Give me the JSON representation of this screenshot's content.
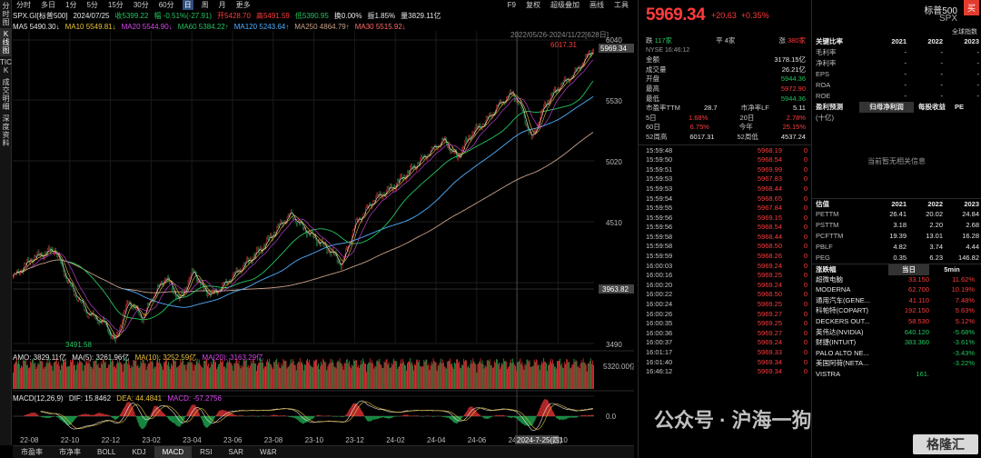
{
  "sidebar": [
    "分时图",
    "K线图",
    "TICK",
    "成交明细",
    "深度资料"
  ],
  "topbar": {
    "items": [
      "分时",
      "多日",
      "1分",
      "5分",
      "15分",
      "30分",
      "60分",
      "日",
      "周",
      "月",
      "更多"
    ],
    "active_index": 7,
    "right": [
      "F9",
      "复权",
      "超级叠加",
      "画线",
      "工具"
    ]
  },
  "info1": {
    "symbol": "SPX.GI[标普500]",
    "date": "2024/07/25",
    "open": "收5399.22",
    "chg": "幅 -0.51%(-27.91)",
    "high": "开5428.70",
    "high2": "高5491.59",
    "low": "低5390.95",
    "turnover": "换0.00%",
    "amp": "振1.85%",
    "vol": "量3829.11亿"
  },
  "info2": {
    "ma5": "MA5 5490.30↓",
    "ma10": "MA10 5549.81↓",
    "ma20": "MA20 5544.90↓",
    "ma60": "MA60 5384.22↑",
    "ma120": "MA120 5243.64↑",
    "ma250": "MA250 4864.79↑",
    "ma30": "MA30 5515.92↓"
  },
  "chart": {
    "range_label": "2022/05/26-2024/11/22[628日]",
    "high_label": "6017.31",
    "low_label": "3491.58",
    "current_label": "5969.34",
    "mid_label": "3963.82",
    "y_ticks": [
      "6040",
      "5530",
      "5020",
      "4510",
      "4000",
      "3490"
    ],
    "x_ticks": [
      "22-08",
      "22-10",
      "22-12",
      "23-02",
      "23-04",
      "23-06",
      "23-08",
      "23-10",
      "23-12",
      "24-02",
      "24-04",
      "24-06",
      "24-08",
      "24-10"
    ],
    "cursor_label": "2024-7-25(四)",
    "vol_info": [
      "AMO: 3829.11亿",
      "MA(5): 3261.96亿",
      "MA(10): 3252.59亿",
      "MA(20): 3163.29亿"
    ],
    "vol_top": "5320.00亿",
    "macd_info": [
      "MACD(12,26,9)",
      "DIF: 15.8462",
      "DEA: 44.4841",
      "MACD: -57.2756"
    ],
    "macd_zero": "0.0"
  },
  "bottom_tabs": [
    "市盈率",
    "市净率",
    "BOLL",
    "KDJ",
    "MACD",
    "RSI",
    "SAR",
    "W&R"
  ],
  "bottom_active": 4,
  "quote": {
    "price": "5969.34",
    "change": "+20.63",
    "pct": "+0.35%",
    "exchange_row": {
      "label": "跌",
      "dn": "117家",
      "flat_label": "平",
      "flat": "4家",
      "up_label": "涨",
      "up": "380家"
    },
    "rows": [
      {
        "k": "金额",
        "v": "3178.15亿",
        "c": "wh"
      },
      {
        "k": "成交量",
        "v": "26.21亿",
        "c": "wh"
      },
      {
        "k": "开盘",
        "v": "5944.36",
        "c": "dn"
      },
      {
        "k": "最高",
        "v": "5972.90",
        "c": "up"
      },
      {
        "k": "最低",
        "v": "5944.36",
        "c": "dn"
      }
    ],
    "pe": {
      "k1": "市盈率TTM",
      "v1": "28.7",
      "k2": "市净率LF",
      "v2": "5.11"
    },
    "d5": {
      "k1": "5日",
      "v1": "1.68%",
      "k2": "20日",
      "v2": "2.78%"
    },
    "d60": {
      "k1": "60日",
      "v1": "6.75%",
      "k2": "今年",
      "v2": "25.15%"
    },
    "w52": {
      "k1": "52周高",
      "v1": "6017.31",
      "k2": "52周低",
      "v2": "4537.24"
    },
    "nyse": "NYSE 16:46:12"
  },
  "ticks": [
    {
      "t": "15:59:48",
      "p": "5968.19",
      "v": "0"
    },
    {
      "t": "15:59:50",
      "p": "5968.54",
      "v": "0"
    },
    {
      "t": "15:59:51",
      "p": "5969.99",
      "v": "0"
    },
    {
      "t": "15:59:53",
      "p": "5967.83",
      "v": "0"
    },
    {
      "t": "15:59:53",
      "p": "5968.44",
      "v": "0"
    },
    {
      "t": "15:59:54",
      "p": "5968.65",
      "v": "0"
    },
    {
      "t": "15:59:55",
      "p": "5967.84",
      "v": "0"
    },
    {
      "t": "15:59:56",
      "p": "5969.15",
      "v": "0"
    },
    {
      "t": "15:59:56",
      "p": "5968.54",
      "v": "0"
    },
    {
      "t": "15:59:58",
      "p": "5968.44",
      "v": "0"
    },
    {
      "t": "15:59:58",
      "p": "5968.50",
      "v": "0"
    },
    {
      "t": "15:59:59",
      "p": "5968.26",
      "v": "0"
    },
    {
      "t": "16:00:03",
      "p": "5969.24",
      "v": "0"
    },
    {
      "t": "16:00:16",
      "p": "5969.25",
      "v": "0"
    },
    {
      "t": "16:00:20",
      "p": "5969.24",
      "v": "0"
    },
    {
      "t": "16:00:22",
      "p": "5968.50",
      "v": "0"
    },
    {
      "t": "16:00:24",
      "p": "5969.25",
      "v": "0"
    },
    {
      "t": "16:00:26",
      "p": "5969.27",
      "v": "0"
    },
    {
      "t": "16:00:35",
      "p": "5969.25",
      "v": "0"
    },
    {
      "t": "16:00:36",
      "p": "5969.27",
      "v": "0"
    },
    {
      "t": "16:00:37",
      "p": "5969.24",
      "v": "0"
    },
    {
      "t": "16:01:17",
      "p": "5969.33",
      "v": "0"
    },
    {
      "t": "16:01:40",
      "p": "5969.34",
      "v": "0"
    },
    {
      "t": "16:46:12",
      "p": "5969.34",
      "v": "0"
    }
  ],
  "right": {
    "title": "标普500",
    "sub": "SPX",
    "global": "全球指数",
    "buy": "买",
    "ratio_hdr": "关键比率",
    "years": [
      "2021",
      "2022",
      "2023"
    ],
    "ratio_rows": [
      {
        "k": "毛利率",
        "v": [
          "-",
          "-",
          "-"
        ]
      },
      {
        "k": "净利率",
        "v": [
          "-",
          "-",
          "-"
        ]
      },
      {
        "k": "EPS",
        "v": [
          "-",
          "-",
          "-"
        ]
      },
      {
        "k": "ROA",
        "v": [
          "-",
          "-",
          "-"
        ]
      },
      {
        "k": "ROE",
        "v": [
          "-",
          "-",
          "-"
        ]
      }
    ],
    "forecast_hdr": "盈利预测",
    "forecast_tabs": [
      "归母净利润",
      "每股收益",
      "PE"
    ],
    "forecast_unit": "(十亿)",
    "forecast_empty": "当前暂无相关信息",
    "val_hdr": "估值",
    "val_rows": [
      {
        "k": "PETTM",
        "v": [
          "26.41",
          "20.02",
          "24.84"
        ]
      },
      {
        "k": "PSTTM",
        "v": [
          "3.18",
          "2.20",
          "2.68"
        ]
      },
      {
        "k": "PCFTTM",
        "v": [
          "19.39",
          "13.01",
          "16.28"
        ]
      },
      {
        "k": "PBLF",
        "v": [
          "4.82",
          "3.74",
          "4.44"
        ]
      },
      {
        "k": "PEG",
        "v": [
          "0.35",
          "6.23",
          "146.82"
        ]
      }
    ],
    "mv_hdr": "涨跌幅",
    "mv_tabs": [
      "当日",
      "5min"
    ],
    "movers": [
      {
        "n": "超微电脑",
        "p": "33.150",
        "c": "11.62%",
        "d": "up"
      },
      {
        "n": "MODERNA",
        "p": "62.700",
        "c": "10.19%",
        "d": "up"
      },
      {
        "n": "通用汽车(GENE...",
        "p": "41.110",
        "c": "7.48%",
        "d": "up"
      },
      {
        "n": "科帕特(COPART)",
        "p": "192.150",
        "c": "5.63%",
        "d": "up"
      },
      {
        "n": "DECKERS OUT...",
        "p": "58.530",
        "c": "5.12%",
        "d": "up"
      },
      {
        "n": "英伟达(NVIDIA)",
        "p": "640.120",
        "c": "-5.68%",
        "d": "dn"
      },
      {
        "n": "财捷(INTUIT)",
        "p": "383.360",
        "c": "-3.61%",
        "d": "dn"
      },
      {
        "n": "PALO ALTO NE...",
        "p": "",
        "c": "-3.43%",
        "d": "dn"
      },
      {
        "n": "美国阿荷(NETA...",
        "p": "",
        "c": "-3.22%",
        "d": "dn"
      },
      {
        "n": "VISTRA",
        "p": "161.",
        "c": "",
        "d": "dn"
      }
    ]
  },
  "watermark": "公众号 · 沪海一狗",
  "logo": "格隆汇"
}
